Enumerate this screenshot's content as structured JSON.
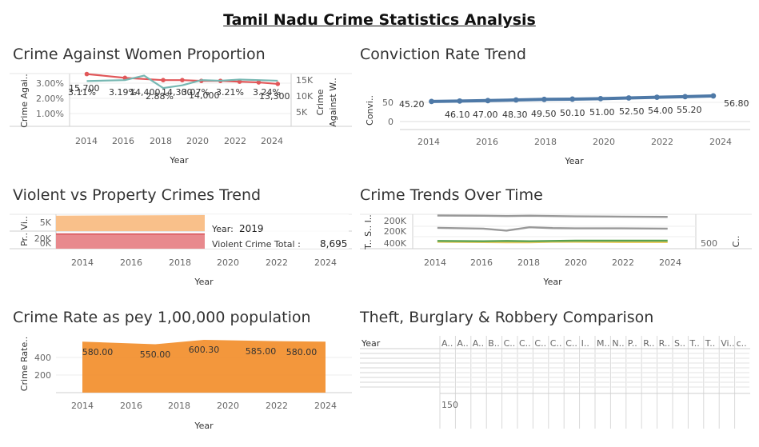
{
  "dashboard_title": "Tamil Nadu Crime Statistics Analysis",
  "charts": {
    "women": {
      "title": "Crime Against Women Proportion",
      "ylabel_left": "Crime Agai..",
      "ylabel_right_1": "Crime",
      "ylabel_right_2": "Against W..",
      "xlabel": "Year",
      "left_ticks": [
        "3.00%",
        "2.00%",
        "1.00%"
      ],
      "right_ticks": [
        "15K",
        "10K",
        "5K"
      ],
      "x_ticks": [
        "2014",
        "2016",
        "2018",
        "2020",
        "2022",
        "2024"
      ]
    },
    "conviction": {
      "title": "Conviction Rate Trend",
      "ylabel": "Convi..",
      "xlabel": "Year",
      "y_ticks": [
        "50",
        "0"
      ],
      "x_ticks": [
        "2014",
        "2016",
        "2018",
        "2020",
        "2022",
        "2024"
      ]
    },
    "violent": {
      "title": "Violent vs Property Crimes Trend",
      "ylabel_top": "Pr.. Vi..",
      "ylabel_bottom": "Pr.. Vi..",
      "y_ticks": [
        "5K",
        "20K",
        "0K"
      ],
      "xlabel": "Year",
      "x_ticks": [
        "2014",
        "2016",
        "2018",
        "2020",
        "2022",
        "2024"
      ],
      "tooltip": {
        "year_label": "Year:",
        "year_value": "2019",
        "vc_label": "Violent Crime Total :",
        "vc_value": "8,695"
      }
    },
    "trends": {
      "title": "Crime Trends Over Time",
      "ylabel": "T.. S.. I..",
      "y_ticks": [
        "200K",
        "200K",
        "400K"
      ],
      "xlabel": "Year",
      "x_ticks": [
        "2014",
        "2016",
        "2018",
        "2020",
        "2022",
        "2024"
      ],
      "side_tick": "500",
      "side_label": "C.."
    },
    "rate": {
      "title": "Crime Rate as pey 1,00,000 population",
      "ylabel": "Crime Rate..",
      "xlabel": "Year",
      "y_ticks": [
        "400",
        "200"
      ],
      "x_ticks": [
        "2014",
        "2016",
        "2018",
        "2020",
        "2022",
        "2024"
      ]
    },
    "theft": {
      "title": "Theft, Burglary & Robbery Comparison",
      "row_header": "Year",
      "columns": [
        "A..",
        "A..",
        "A..",
        "B..",
        "C..",
        "C..",
        "C..",
        "C..",
        "C..",
        "I..",
        "M..",
        "N..",
        "P..",
        "R..",
        "R..",
        "S..",
        "T..",
        "T..",
        "Vi..",
        "c.."
      ],
      "bottom_label": "150"
    }
  },
  "chart_data": [
    {
      "type": "line",
      "title": "Crime Against Women Proportion",
      "xlabel": "Year",
      "ylabel": "Crime Agai..",
      "xlim": [
        2013,
        2025
      ],
      "series": [
        {
          "name": "Crime Agai..",
          "axis": "left",
          "color": "#e15759",
          "x": [
            2014,
            2016,
            2018,
            2019,
            2020,
            2021,
            2022,
            2023,
            2024
          ],
          "values": [
            3.6,
            3.35,
            3.2,
            3.2,
            3.15,
            3.15,
            3.1,
            3.05,
            2.95
          ]
        },
        {
          "name": "Against W..",
          "axis": "right",
          "color": "#76b7b2",
          "x": [
            2014,
            2016,
            2017,
            2018,
            2019,
            2020,
            2021,
            2022,
            2023,
            2024
          ],
          "values": [
            15700,
            16000,
            17500,
            13400,
            14300,
            16000,
            15800,
            16200,
            16000,
            15800
          ]
        }
      ],
      "labels": [
        "3.11%",
        "15,700",
        "3.19%",
        "14,400",
        "2.88%",
        "14,300",
        "3.07%",
        "14,000",
        "3.21%",
        "3.24%",
        "13,300"
      ],
      "ylim_left": [
        0,
        4
      ],
      "ylim_right": [
        0,
        20000
      ],
      "grid": true
    },
    {
      "type": "line",
      "title": "Conviction Rate Trend",
      "xlabel": "Year",
      "ylabel": "Convi..",
      "x": [
        2014,
        2015,
        2016,
        2017,
        2018,
        2019,
        2020,
        2021,
        2022,
        2023,
        2024
      ],
      "values": [
        45.2,
        46.1,
        47.0,
        48.3,
        49.5,
        50.1,
        51.0,
        52.5,
        54.0,
        55.2,
        56.8
      ],
      "labels": [
        "45.20",
        "46.10",
        "47.00",
        "48.30",
        "49.50",
        "50.10",
        "51.00",
        "52.50",
        "54.00",
        "55.20",
        "56.80"
      ],
      "color": "#4e79a7",
      "ylim": [
        0,
        60
      ],
      "grid": true
    },
    {
      "type": "area",
      "title": "Violent vs Property Crimes Trend",
      "xlabel": "Year",
      "x": [
        2013,
        2019
      ],
      "series": [
        {
          "panel": "top",
          "color": "#f9c08a",
          "values": [
            5500,
            5700
          ]
        },
        {
          "panel": "bottom",
          "color": "#e8898d",
          "values": [
            20000,
            20000
          ]
        }
      ],
      "tooltip_year": 2019,
      "tooltip_violent_crime_total": 8695,
      "grid": true
    },
    {
      "type": "line",
      "title": "Crime Trends Over Time",
      "xlabel": "Year",
      "x": [
        2014,
        2016,
        2017,
        2018,
        2019,
        2020,
        2022,
        2024
      ],
      "series": [
        {
          "color": "#999999",
          "values": [
            250,
            249,
            248,
            249,
            248,
            247,
            246,
            245
          ]
        },
        {
          "color": "#999999",
          "values": [
            206,
            203,
            196,
            208,
            205,
            204,
            204,
            203
          ]
        },
        {
          "color": "#f1ce63",
          "values": [
            156,
            155,
            154,
            154,
            156,
            156,
            155,
            155
          ]
        },
        {
          "color": "#59a14f",
          "values": [
            159,
            158,
            159,
            158,
            159,
            160,
            160,
            160
          ]
        }
      ],
      "grid": true
    },
    {
      "type": "area",
      "title": "Crime Rate as pey 1,00,000 population",
      "xlabel": "Year",
      "ylabel": "Crime Rate..",
      "x": [
        2014,
        2017,
        2019,
        2022,
        2024
      ],
      "values": [
        580.0,
        550.0,
        600.3,
        585.0,
        580.0
      ],
      "labels": [
        "580.00",
        "550.00",
        "600.30",
        "585.00",
        "580.00"
      ],
      "color": "#f28e2b",
      "ylim": [
        0,
        700
      ],
      "grid": true
    }
  ]
}
